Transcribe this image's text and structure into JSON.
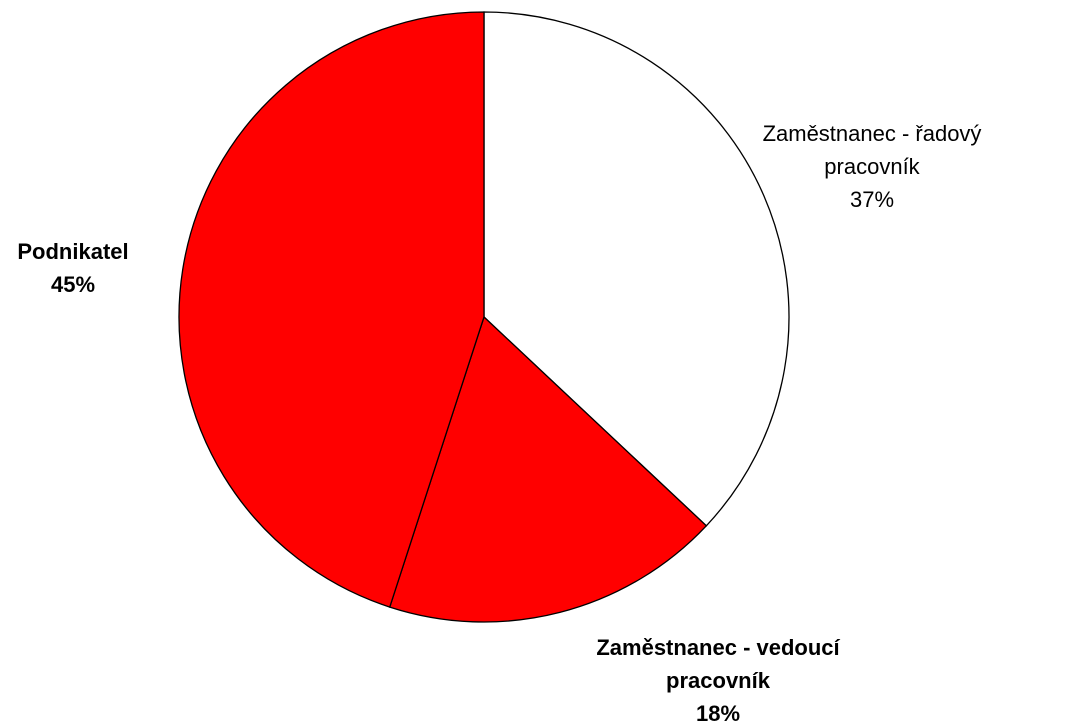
{
  "chart_data": {
    "type": "pie",
    "categories": [
      "Zaměstnanec - řadový pracovník",
      "Zaměstnanec - vedoucí pracovník",
      "Podnikatel"
    ],
    "values": [
      37,
      18,
      45
    ],
    "value_labels": [
      "37%",
      "18%",
      "45%"
    ],
    "colors": [
      "#ffffff",
      "#ff0000",
      "#ff0000"
    ]
  }
}
